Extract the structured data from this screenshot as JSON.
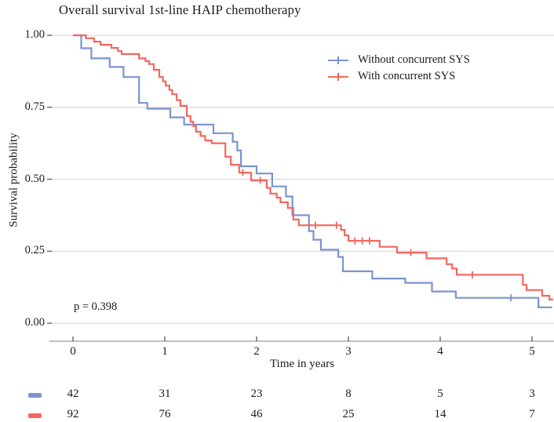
{
  "title": "Overall survival 1st-line HAIP chemotherapy",
  "legend": {
    "items": [
      {
        "label": "Without concurrent SYS",
        "color": "#7B93CE"
      },
      {
        "label": "With concurrent SYS",
        "color": "#F4675F"
      }
    ]
  },
  "chart_data": {
    "type": "line",
    "subtype": "kaplan_meier_step",
    "title": "Overall survival 1st-line HAIP chemotherapy",
    "xlabel": "Time in years",
    "ylabel": "Survival probability",
    "p_value_label": "p = 0.398",
    "xlim": [
      0,
      5.3
    ],
    "ylim": [
      0,
      1
    ],
    "grid": "horizontal-only",
    "legend_position": "top-right-inside",
    "x_ticks": [
      {
        "value": 0,
        "label": "0"
      },
      {
        "value": 1,
        "label": "1"
      },
      {
        "value": 2,
        "label": "2"
      },
      {
        "value": 3,
        "label": "3"
      },
      {
        "value": 4,
        "label": "4"
      },
      {
        "value": 5,
        "label": "5"
      }
    ],
    "y_ticks": [
      {
        "value": 0.0,
        "label": "0.00"
      },
      {
        "value": 0.25,
        "label": "0.25"
      },
      {
        "value": 0.5,
        "label": "0.50"
      },
      {
        "value": 0.75,
        "label": "0.75"
      },
      {
        "value": 1.0,
        "label": "1.00"
      }
    ],
    "series": [
      {
        "name": "Without concurrent SYS",
        "color": "#7B93CE",
        "steps": [
          [
            0,
            1.0
          ],
          [
            0.09,
            0.955
          ],
          [
            0.2,
            0.92
          ],
          [
            0.4,
            0.89
          ],
          [
            0.55,
            0.855
          ],
          [
            0.72,
            0.765
          ],
          [
            0.81,
            0.745
          ],
          [
            1.06,
            0.715
          ],
          [
            1.21,
            0.69
          ],
          [
            1.53,
            0.66
          ],
          [
            1.74,
            0.63
          ],
          [
            1.79,
            0.6
          ],
          [
            1.83,
            0.545
          ],
          [
            2.0,
            0.52
          ],
          [
            2.17,
            0.475
          ],
          [
            2.32,
            0.44
          ],
          [
            2.39,
            0.375
          ],
          [
            2.57,
            0.32
          ],
          [
            2.62,
            0.29
          ],
          [
            2.7,
            0.255
          ],
          [
            2.89,
            0.23
          ],
          [
            2.94,
            0.18
          ],
          [
            3.26,
            0.155
          ],
          [
            3.62,
            0.14
          ],
          [
            3.91,
            0.11
          ],
          [
            4.17,
            0.088
          ],
          [
            5.07,
            0.055
          ],
          [
            5.22,
            0.055
          ]
        ],
        "censors": [
          [
            4.77,
            0.088
          ]
        ]
      },
      {
        "name": "With concurrent SYS",
        "color": "#F4675F",
        "steps": [
          [
            0,
            1.0
          ],
          [
            0.14,
            0.99
          ],
          [
            0.23,
            0.978
          ],
          [
            0.3,
            0.967
          ],
          [
            0.42,
            0.956
          ],
          [
            0.49,
            0.945
          ],
          [
            0.53,
            0.935
          ],
          [
            0.72,
            0.92
          ],
          [
            0.79,
            0.91
          ],
          [
            0.83,
            0.9
          ],
          [
            0.88,
            0.88
          ],
          [
            0.94,
            0.855
          ],
          [
            0.98,
            0.84
          ],
          [
            1.01,
            0.825
          ],
          [
            1.05,
            0.81
          ],
          [
            1.08,
            0.795
          ],
          [
            1.13,
            0.775
          ],
          [
            1.17,
            0.755
          ],
          [
            1.24,
            0.72
          ],
          [
            1.28,
            0.7
          ],
          [
            1.31,
            0.685
          ],
          [
            1.34,
            0.665
          ],
          [
            1.39,
            0.65
          ],
          [
            1.44,
            0.635
          ],
          [
            1.51,
            0.625
          ],
          [
            1.66,
            0.578
          ],
          [
            1.72,
            0.55
          ],
          [
            1.81,
            0.523
          ],
          [
            1.94,
            0.496
          ],
          [
            2.11,
            0.47
          ],
          [
            2.15,
            0.45
          ],
          [
            2.22,
            0.436
          ],
          [
            2.26,
            0.42
          ],
          [
            2.34,
            0.4
          ],
          [
            2.4,
            0.36
          ],
          [
            2.46,
            0.34
          ],
          [
            2.92,
            0.324
          ],
          [
            2.96,
            0.305
          ],
          [
            3.0,
            0.286
          ],
          [
            3.34,
            0.265
          ],
          [
            3.53,
            0.245
          ],
          [
            3.85,
            0.225
          ],
          [
            4.07,
            0.205
          ],
          [
            4.13,
            0.19
          ],
          [
            4.18,
            0.168
          ],
          [
            4.9,
            0.133
          ],
          [
            4.94,
            0.115
          ],
          [
            5.11,
            0.095
          ],
          [
            5.19,
            0.082
          ],
          [
            5.23,
            0.082
          ]
        ],
        "censors": [
          [
            1.85,
            0.523
          ],
          [
            2.04,
            0.496
          ],
          [
            2.64,
            0.34
          ],
          [
            2.87,
            0.34
          ],
          [
            3.07,
            0.286
          ],
          [
            3.15,
            0.286
          ],
          [
            3.23,
            0.286
          ],
          [
            3.68,
            0.245
          ],
          [
            4.35,
            0.168
          ]
        ]
      }
    ],
    "risk_table": {
      "time_points": [
        0,
        1,
        2,
        3,
        4,
        5
      ],
      "rows": [
        {
          "name": "Without concurrent SYS",
          "color": "#7B93CE",
          "counts": [
            42,
            31,
            23,
            8,
            5,
            3
          ]
        },
        {
          "name": "With concurrent SYS",
          "color": "#F4675F",
          "counts": [
            92,
            76,
            46,
            25,
            14,
            7
          ]
        }
      ]
    },
    "colors": {
      "gridline": "#d9d9d9",
      "axis_line": "#9a9a9a",
      "tick_mark": "#4a4a4a",
      "text": "#1a1a1a"
    }
  }
}
